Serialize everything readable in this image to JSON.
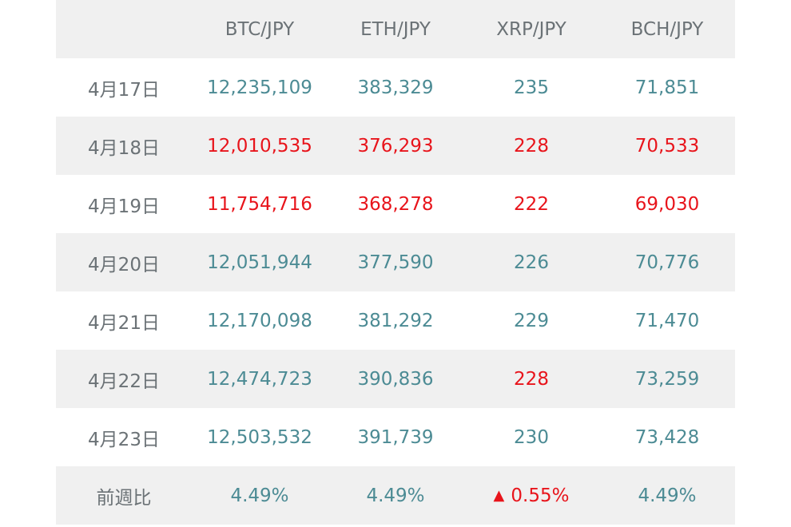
{
  "header": {
    "date_label": "",
    "columns": [
      "BTC/JPY",
      "ETH/JPY",
      "XRP/JPY",
      "BCH/JPY"
    ]
  },
  "rows": [
    {
      "date": "4月17日",
      "btc": "12,235,109",
      "eth": "383,329",
      "xrp": "235",
      "bch": "71,851"
    },
    {
      "date": "4月18日",
      "btc": "12,010,535",
      "eth": "376,293",
      "xrp": "228",
      "bch": "70,533"
    },
    {
      "date": "4月19日",
      "btc": "11,754,716",
      "eth": "368,278",
      "xrp": "222",
      "bch": "69,030"
    },
    {
      "date": "4月20日",
      "btc": "12,051,944",
      "eth": "377,590",
      "xrp": "226",
      "bch": "70,776"
    },
    {
      "date": "4月21日",
      "btc": "12,170,098",
      "eth": "381,292",
      "xrp": "229",
      "bch": "71,470"
    },
    {
      "date": "4月22日",
      "btc": "12,474,723",
      "eth": "390,836",
      "xrp": "228",
      "bch": "73,259"
    },
    {
      "date": "4月23日",
      "btc": "12,503,532",
      "eth": "391,739",
      "xrp": "230",
      "bch": "73,428"
    }
  ],
  "summary": {
    "label": "前週比",
    "btc": "4.49%",
    "eth": "4.49%",
    "xrp_marker": "▲",
    "xrp": "0.55%",
    "bch": "4.49%"
  },
  "colors": {
    "up": "#4c8b94",
    "down": "#e8141b",
    "label": "#6b7276",
    "stripe": "#f0f0f0"
  }
}
